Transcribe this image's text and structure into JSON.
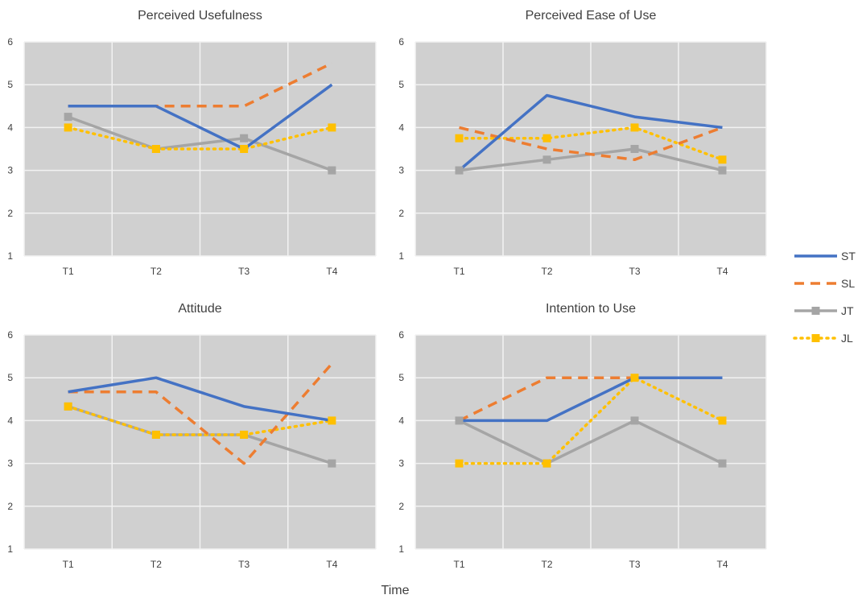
{
  "x_label": "Time",
  "colors": {
    "ST": "#4472C4",
    "SL": "#ED7D31",
    "JT": "#A5A5A5",
    "JL": "#FFC000",
    "plot_bg": "#D0D0D0",
    "grid": "#F2F2F2"
  },
  "legend": [
    {
      "name": "ST",
      "style": "solid",
      "color": "#4472C4",
      "marker": "none"
    },
    {
      "name": "SL",
      "style": "dashed",
      "color": "#ED7D31",
      "marker": "none"
    },
    {
      "name": "JT",
      "style": "solid",
      "color": "#A5A5A5",
      "marker": "square"
    },
    {
      "name": "JL",
      "style": "dotted",
      "color": "#FFC000",
      "marker": "square"
    }
  ],
  "chart_data": [
    {
      "type": "line",
      "title": "Perceived Usefulness",
      "categories": [
        "T1",
        "T2",
        "T3",
        "T4"
      ],
      "ylim": [
        1,
        6
      ],
      "yticks": [
        1,
        2,
        3,
        4,
        5,
        6
      ],
      "grid": true,
      "series": [
        {
          "name": "ST",
          "values": [
            4.5,
            4.5,
            3.5,
            5.0
          ]
        },
        {
          "name": "SL",
          "values": [
            4.5,
            4.5,
            4.5,
            5.5
          ]
        },
        {
          "name": "JT",
          "values": [
            4.25,
            3.5,
            3.75,
            3.0
          ]
        },
        {
          "name": "JL",
          "values": [
            4.0,
            3.5,
            3.5,
            4.0
          ]
        }
      ]
    },
    {
      "type": "line",
      "title": "Perceived Ease of Use",
      "categories": [
        "T1",
        "T2",
        "T3",
        "T4"
      ],
      "ylim": [
        1,
        6
      ],
      "yticks": [
        1,
        2,
        3,
        4,
        5,
        6
      ],
      "grid": true,
      "series": [
        {
          "name": "ST",
          "values": [
            3.0,
            4.75,
            4.25,
            4.0
          ]
        },
        {
          "name": "SL",
          "values": [
            4.0,
            3.5,
            3.25,
            4.0
          ]
        },
        {
          "name": "JT",
          "values": [
            3.0,
            3.25,
            3.5,
            3.0
          ]
        },
        {
          "name": "JL",
          "values": [
            3.75,
            3.75,
            4.0,
            3.25
          ]
        }
      ]
    },
    {
      "type": "line",
      "title": "Attitude",
      "categories": [
        "T1",
        "T2",
        "T3",
        "T4"
      ],
      "ylim": [
        1,
        6
      ],
      "yticks": [
        1,
        2,
        3,
        4,
        5,
        6
      ],
      "grid": true,
      "series": [
        {
          "name": "ST",
          "values": [
            4.67,
            5.0,
            4.33,
            4.0
          ]
        },
        {
          "name": "SL",
          "values": [
            4.67,
            4.67,
            3.0,
            5.33
          ]
        },
        {
          "name": "JT",
          "values": [
            4.33,
            3.67,
            3.67,
            3.0
          ]
        },
        {
          "name": "JL",
          "values": [
            4.33,
            3.67,
            3.67,
            4.0
          ]
        }
      ]
    },
    {
      "type": "line",
      "title": "Intention to Use",
      "categories": [
        "T1",
        "T2",
        "T3",
        "T4"
      ],
      "ylim": [
        1,
        6
      ],
      "yticks": [
        1,
        2,
        3,
        4,
        5,
        6
      ],
      "grid": true,
      "series": [
        {
          "name": "ST",
          "values": [
            4.0,
            4.0,
            5.0,
            5.0
          ]
        },
        {
          "name": "SL",
          "values": [
            4.0,
            5.0,
            5.0,
            5.0
          ]
        },
        {
          "name": "JT",
          "values": [
            4.0,
            3.0,
            4.0,
            3.0
          ]
        },
        {
          "name": "JL",
          "values": [
            3.0,
            3.0,
            5.0,
            4.0
          ]
        }
      ]
    }
  ]
}
